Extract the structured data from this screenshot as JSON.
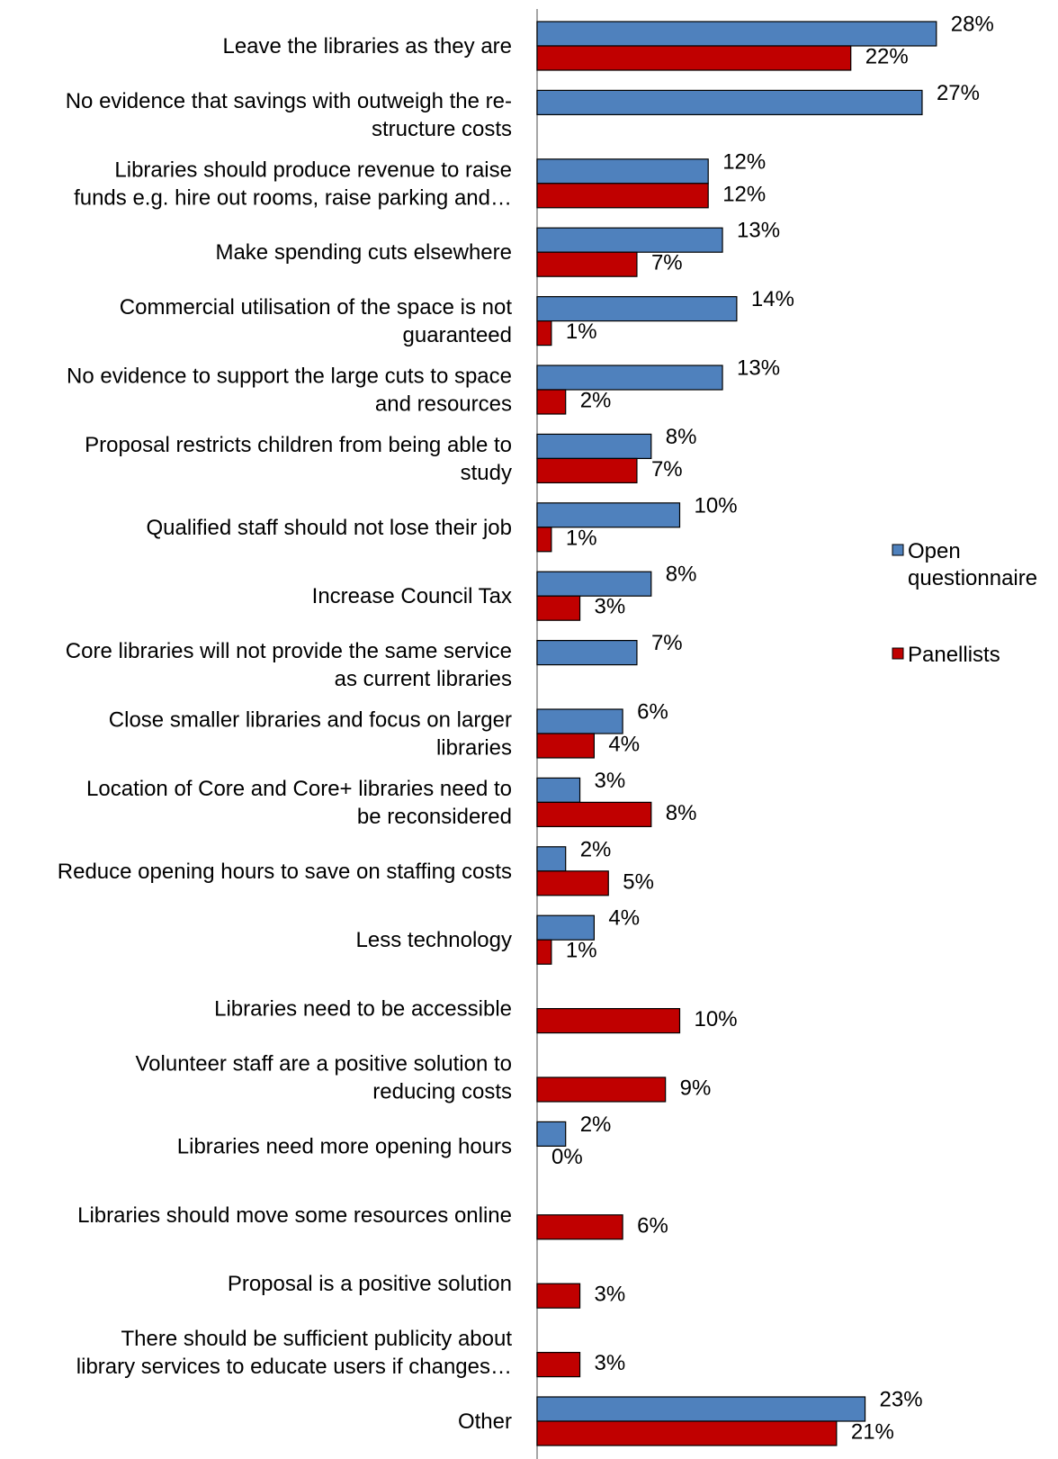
{
  "chart_data": {
    "type": "bar",
    "orientation": "horizontal",
    "categories": [
      [
        "Leave the libraries as they are"
      ],
      [
        "No evidence that savings with outweigh the re-",
        "structure costs"
      ],
      [
        "Libraries should produce revenue to raise",
        "funds e.g. hire out rooms, raise parking and…"
      ],
      [
        "Make spending cuts elsewhere"
      ],
      [
        "Commercial utilisation of the space is not",
        "guaranteed"
      ],
      [
        "No evidence to support the large cuts to space",
        "and resources"
      ],
      [
        "Proposal restricts children from being able to",
        "study"
      ],
      [
        "Qualified staff should not lose their job"
      ],
      [
        "Increase Council Tax"
      ],
      [
        "Core libraries will not provide the same service",
        "as current libraries"
      ],
      [
        "Close smaller libraries and focus on larger",
        "libraries"
      ],
      [
        "Location  of Core and Core+ libraries need to",
        "be reconsidered"
      ],
      [
        "Reduce opening hours to save on staffing costs"
      ],
      [
        "Less technology"
      ],
      [
        "Libraries need to be accessible"
      ],
      [
        "Volunteer staff are a positive solution to",
        "reducing costs"
      ],
      [
        "Libraries need more opening hours"
      ],
      [
        "Libraries should move some resources online"
      ],
      [
        "Proposal is a positive solution"
      ],
      [
        "There should be sufficient publicity about",
        "library services to educate users if changes…"
      ],
      [
        "Other"
      ]
    ],
    "series": [
      {
        "name": "Open questionnaire",
        "color": "#4F81BD",
        "values": [
          28,
          27,
          12,
          13,
          14,
          13,
          8,
          10,
          8,
          7,
          6,
          3,
          2,
          4,
          null,
          null,
          2,
          null,
          null,
          null,
          23
        ],
        "labels": [
          "28%",
          "27%",
          "12%",
          "13%",
          "14%",
          "13%",
          "8%",
          "10%",
          "8%",
          "7%",
          "6%",
          "3%",
          "2%",
          "4%",
          null,
          null,
          "2%",
          null,
          null,
          null,
          "23%"
        ]
      },
      {
        "name": "Panellists",
        "color": "#C00000",
        "values": [
          22,
          null,
          12,
          7,
          1,
          2,
          7,
          1,
          3,
          null,
          4,
          8,
          5,
          1,
          10,
          9,
          0,
          6,
          3,
          3,
          21
        ],
        "labels": [
          "22%",
          null,
          "12%",
          "7%",
          "1%",
          "2%",
          "7%",
          "1%",
          "3%",
          null,
          "4%",
          "8%",
          "5%",
          "1%",
          "10%",
          "9%",
          "0%",
          "6%",
          "3%",
          "3%",
          "21%"
        ]
      }
    ],
    "xlim": [
      0,
      30
    ],
    "grid": false,
    "legend": {
      "position": "right",
      "entries": [
        {
          "lines": [
            "Open",
            "questionnaire"
          ],
          "color": "#4F81BD"
        },
        {
          "lines": [
            "Panellists"
          ],
          "color": "#C00000"
        }
      ]
    }
  }
}
